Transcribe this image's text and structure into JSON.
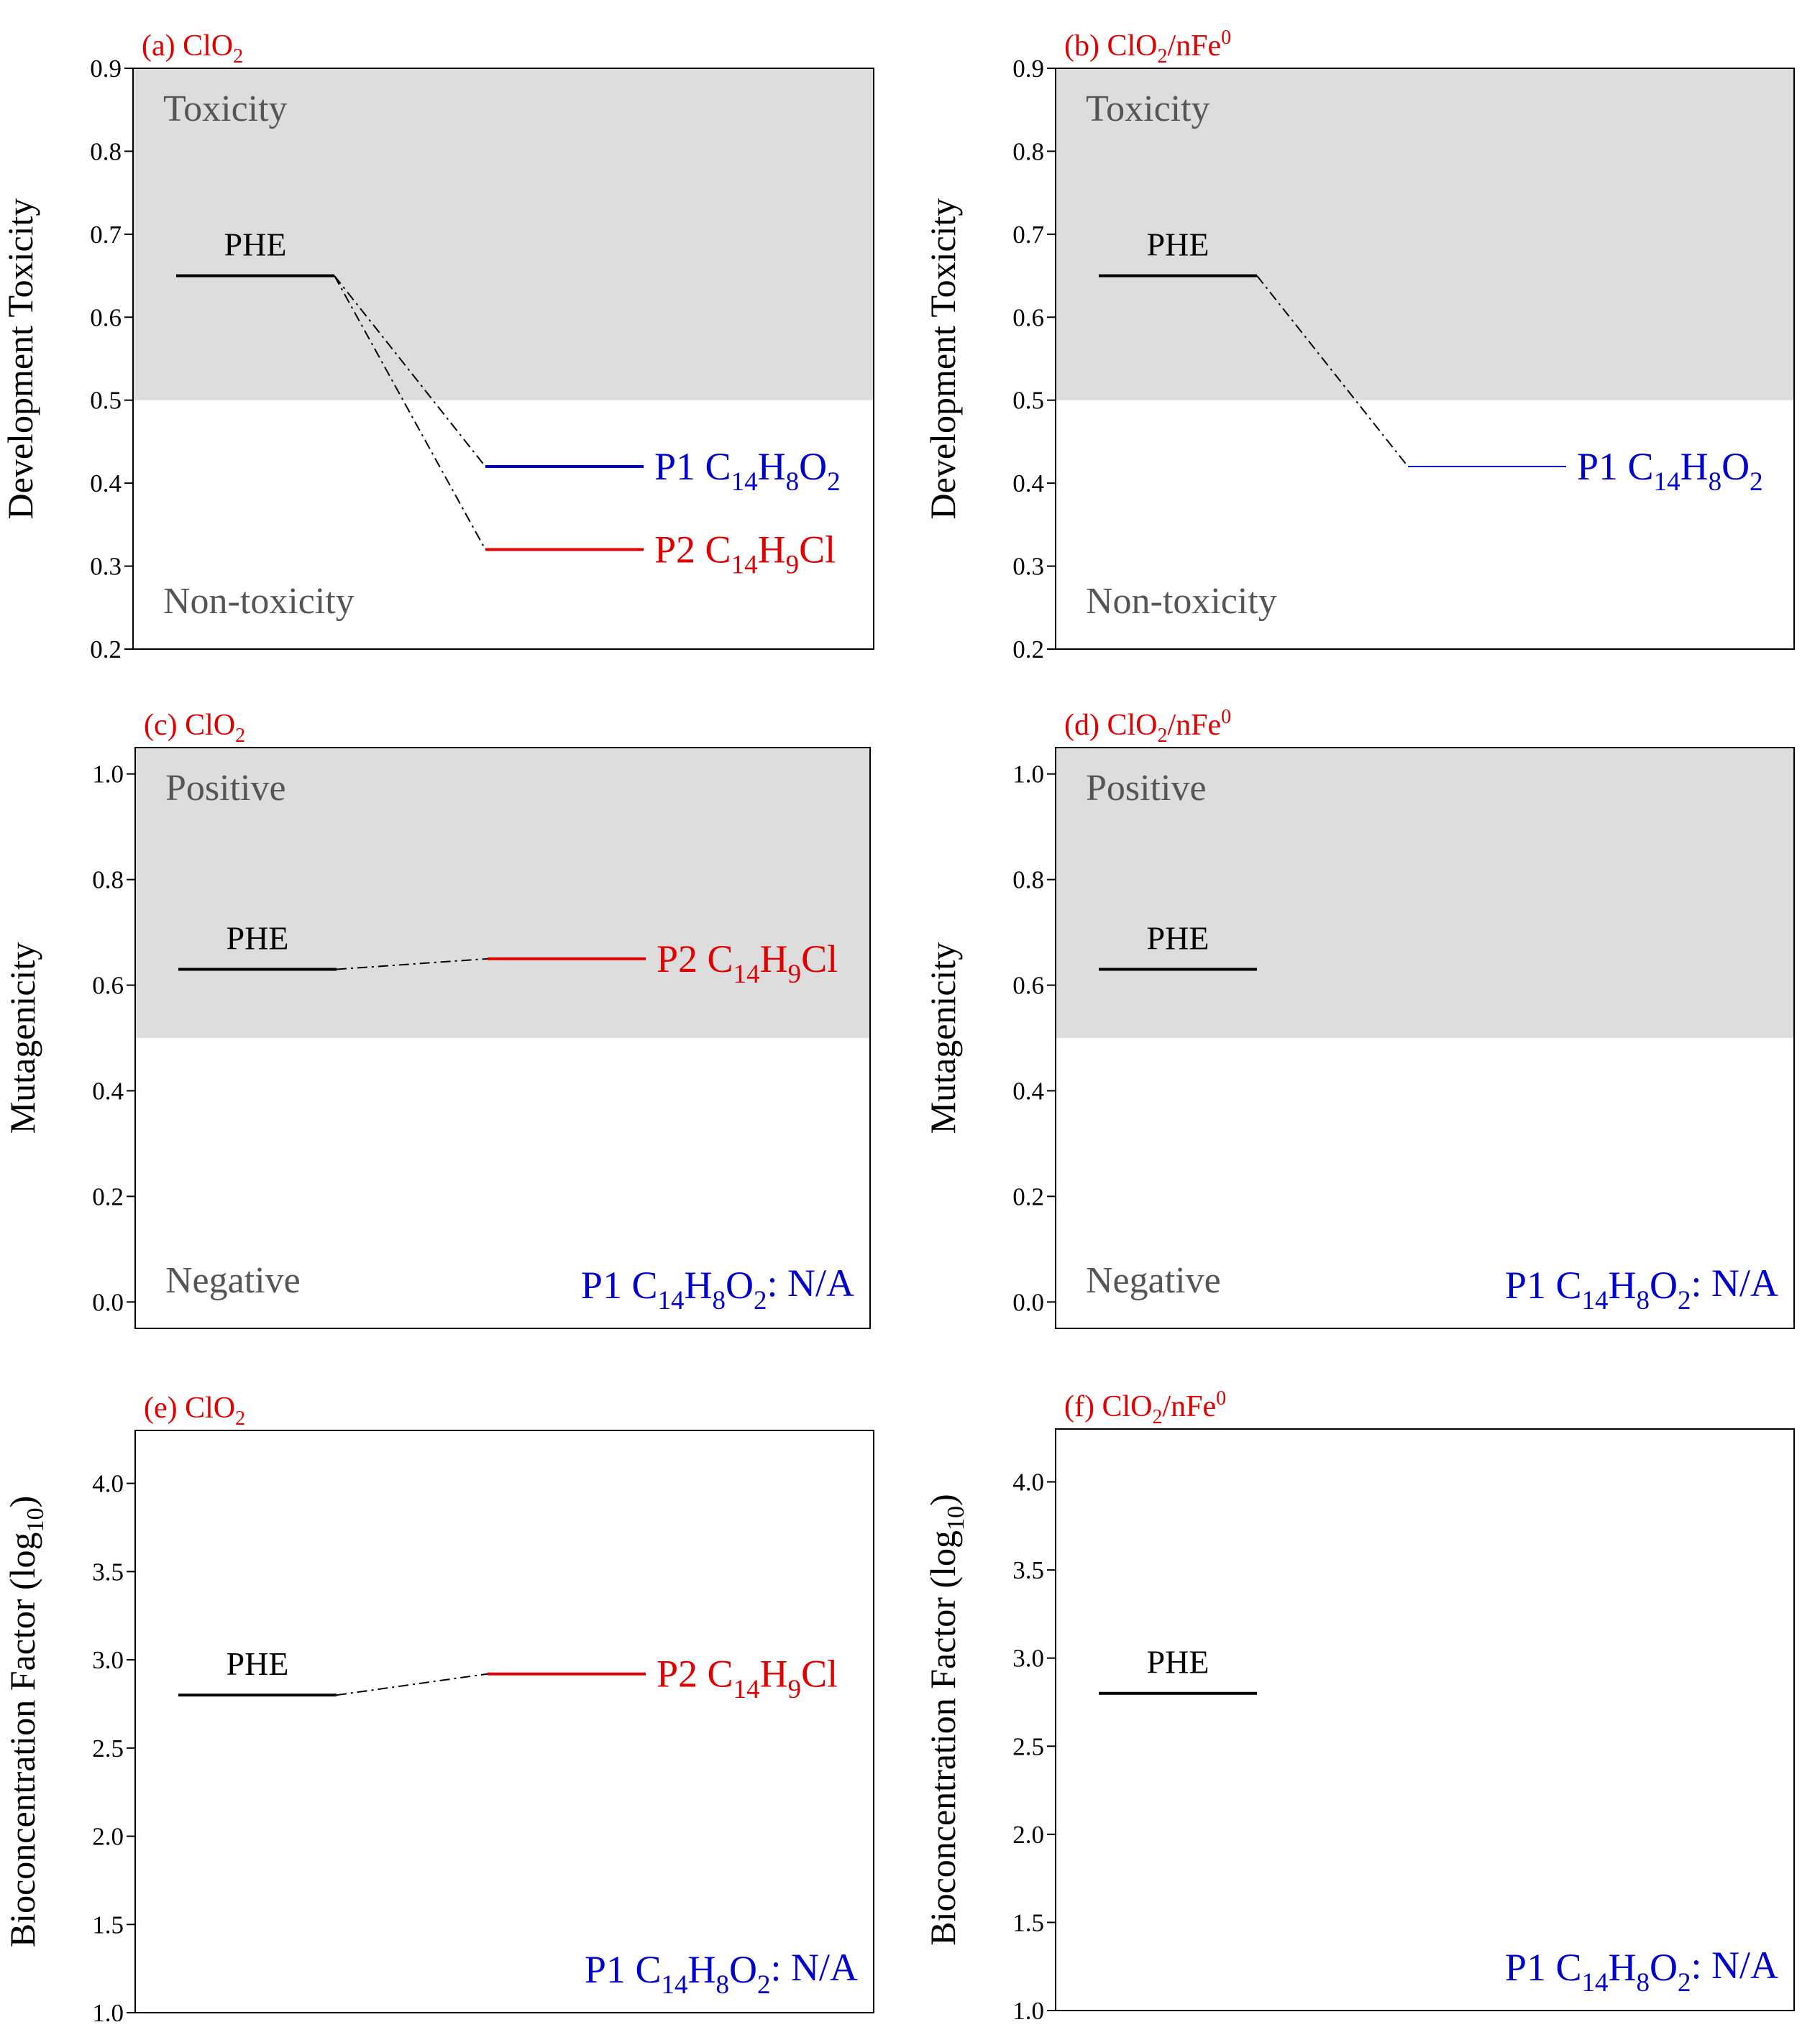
{
  "colors": {
    "title": "#e00000",
    "shade": "#dddddd",
    "zone_text": "#555555",
    "p1": "#0000cc",
    "p2": "#e00000",
    "phe": "#000000"
  },
  "chart_data": [
    {
      "id": "a",
      "type": "level-diagram",
      "title": "(a) ClO",
      "title_sub": "2",
      "title_sup": "",
      "ylabel": "Development Toxicity",
      "ylabel_sub": "",
      "ylabel_end": "",
      "ylim": [
        0.2,
        0.9
      ],
      "yticks": [
        "0.2",
        "0.3",
        "0.4",
        "0.5",
        "0.6",
        "0.7",
        "0.8",
        "0.9"
      ],
      "tick_values": [
        0.2,
        0.3,
        0.4,
        0.5,
        0.6,
        0.7,
        0.8,
        0.9
      ],
      "shade_from": 0.5,
      "zone_top": "Toxicity",
      "zone_bottom": "Non-toxicity",
      "levels": [
        {
          "name": "PHE",
          "value": 0.65,
          "role": "phe"
        },
        {
          "name": "P1",
          "formula": [
            "C",
            "14",
            "H",
            "8",
            "O",
            "2"
          ],
          "value": 0.42,
          "role": "p1"
        },
        {
          "name": "P2",
          "formula": [
            "C",
            "14",
            "H",
            "9",
            "Cl",
            ""
          ],
          "value": 0.32,
          "role": "p2"
        }
      ],
      "na_note": null
    },
    {
      "id": "b",
      "type": "level-diagram",
      "title": "(b) ClO",
      "title_sub": "2",
      "title_mid": "/nFe",
      "title_sup": "0",
      "ylabel": "Development Toxicity",
      "ylabel_sub": "",
      "ylabel_end": "",
      "ylim": [
        0.2,
        0.9
      ],
      "yticks": [
        "0.2",
        "0.3",
        "0.4",
        "0.5",
        "0.6",
        "0.7",
        "0.8",
        "0.9"
      ],
      "tick_values": [
        0.2,
        0.3,
        0.4,
        0.5,
        0.6,
        0.7,
        0.8,
        0.9
      ],
      "shade_from": 0.5,
      "zone_top": "Toxicity",
      "zone_bottom": "Non-toxicity",
      "levels": [
        {
          "name": "PHE",
          "value": 0.65,
          "role": "phe"
        },
        {
          "name": "P1",
          "formula": [
            "C",
            "14",
            "H",
            "8",
            "O",
            "2"
          ],
          "value": 0.42,
          "role": "p1"
        }
      ],
      "na_note": null
    },
    {
      "id": "c",
      "type": "level-diagram",
      "title": "(c) ClO",
      "title_sub": "2",
      "title_sup": "",
      "ylabel": "Mutagenicity",
      "ylabel_sub": "",
      "ylabel_end": "",
      "ylim": [
        -0.05,
        1.05
      ],
      "yticks": [
        "0.0",
        "0.2",
        "0.4",
        "0.6",
        "0.8",
        "1.0"
      ],
      "tick_values": [
        0.0,
        0.2,
        0.4,
        0.6,
        0.8,
        1.0
      ],
      "shade_from": 0.5,
      "zone_top": "Positive",
      "zone_bottom": "Negative",
      "levels": [
        {
          "name": "PHE",
          "value": 0.63,
          "role": "phe"
        },
        {
          "name": "P2",
          "formula": [
            "C",
            "14",
            "H",
            "9",
            "Cl",
            ""
          ],
          "value": 0.65,
          "role": "p2"
        }
      ],
      "na_note": {
        "prefix": "P1 ",
        "formula": [
          "C",
          "14",
          "H",
          "8",
          "O",
          "2"
        ],
        "suffix": ": N/A"
      }
    },
    {
      "id": "d",
      "type": "level-diagram",
      "title": "(d) ClO",
      "title_sub": "2",
      "title_mid": "/nFe",
      "title_sup": "0",
      "ylabel": "Mutagenicity",
      "ylabel_sub": "",
      "ylabel_end": "",
      "ylim": [
        -0.05,
        1.05
      ],
      "yticks": [
        "0.0",
        "0.2",
        "0.4",
        "0.6",
        "0.8",
        "1.0"
      ],
      "tick_values": [
        0.0,
        0.2,
        0.4,
        0.6,
        0.8,
        1.0
      ],
      "shade_from": 0.5,
      "zone_top": "Positive",
      "zone_bottom": "Negative",
      "levels": [
        {
          "name": "PHE",
          "value": 0.63,
          "role": "phe"
        }
      ],
      "na_note": {
        "prefix": "P1 ",
        "formula": [
          "C",
          "14",
          "H",
          "8",
          "O",
          "2"
        ],
        "suffix": ": N/A"
      }
    },
    {
      "id": "e",
      "type": "level-diagram",
      "title": "(e) ClO",
      "title_sub": "2",
      "title_sup": "",
      "ylabel": "Bioconcentration Factor (log",
      "ylabel_sub": "10",
      "ylabel_end": ")",
      "ylim": [
        1.0,
        4.3
      ],
      "yticks": [
        "1.0",
        "1.5",
        "2.0",
        "2.5",
        "3.0",
        "3.5",
        "4.0"
      ],
      "tick_values": [
        1.0,
        1.5,
        2.0,
        2.5,
        3.0,
        3.5,
        4.0
      ],
      "shade_from": null,
      "zone_top": null,
      "zone_bottom": null,
      "levels": [
        {
          "name": "PHE",
          "value": 2.8,
          "role": "phe"
        },
        {
          "name": "P2",
          "formula": [
            "C",
            "14",
            "H",
            "9",
            "Cl",
            ""
          ],
          "value": 2.92,
          "role": "p2"
        }
      ],
      "na_note": {
        "prefix": "P1 ",
        "formula": [
          "C",
          "14",
          "H",
          "8",
          "O",
          "2"
        ],
        "suffix": ": N/A"
      }
    },
    {
      "id": "f",
      "type": "level-diagram",
      "title": "(f) ClO",
      "title_sub": "2",
      "title_mid": "/nFe",
      "title_sup": "0",
      "ylabel": "Bioconcentration Factor (log",
      "ylabel_sub": "10",
      "ylabel_end": ")",
      "ylim": [
        1.0,
        4.3
      ],
      "yticks": [
        "1.0",
        "1.5",
        "2.0",
        "2.5",
        "3.0",
        "3.5",
        "4.0"
      ],
      "tick_values": [
        1.0,
        1.5,
        2.0,
        2.5,
        3.0,
        3.5,
        4.0
      ],
      "shade_from": null,
      "zone_top": null,
      "zone_bottom": null,
      "levels": [
        {
          "name": "PHE",
          "value": 2.8,
          "role": "phe"
        }
      ],
      "na_note": {
        "prefix": "P1 ",
        "formula": [
          "C",
          "14",
          "H",
          "8",
          "O",
          "2"
        ],
        "suffix": ": N/A"
      }
    }
  ]
}
